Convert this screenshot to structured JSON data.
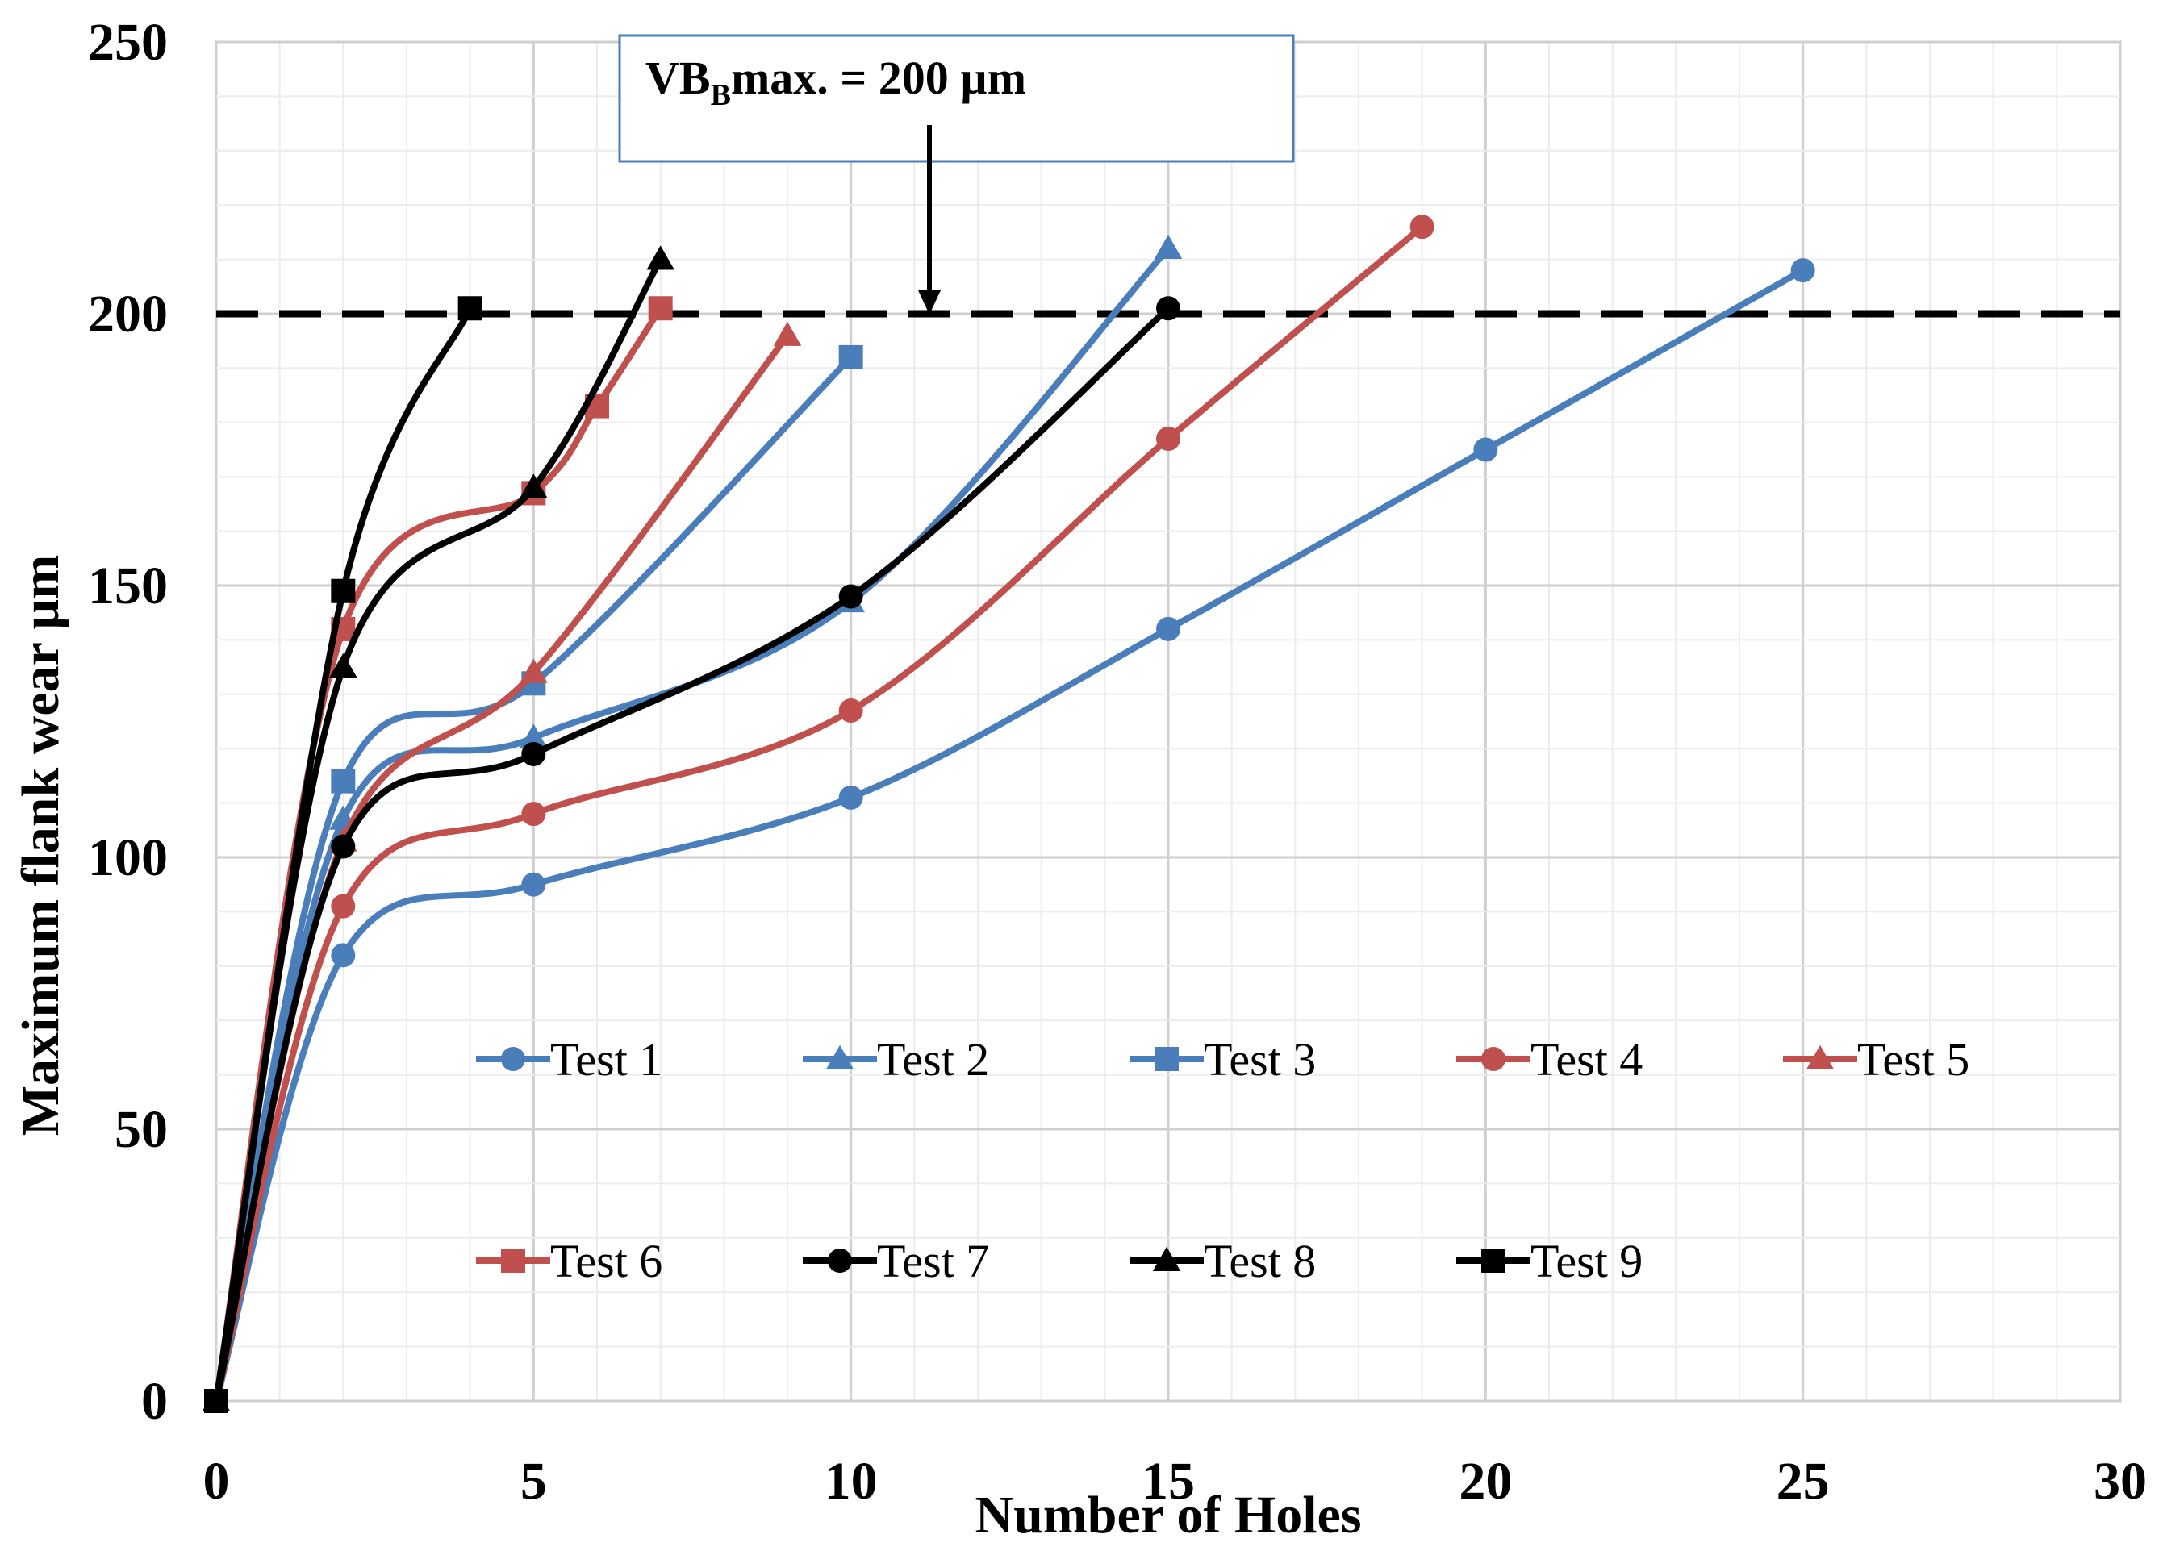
{
  "chart_data": {
    "type": "line",
    "title": "",
    "xlabel": "Number of Holes",
    "ylabel": "Maximum flank wear µm",
    "xlim": [
      0,
      30
    ],
    "ylim": [
      0,
      250
    ],
    "xticks": [
      0,
      5,
      10,
      15,
      20,
      25,
      30
    ],
    "yticks": [
      0,
      50,
      100,
      150,
      200,
      250
    ],
    "grid": true,
    "legend_position": "center",
    "threshold": {
      "value": 200,
      "style": "dashed",
      "color": "#000000"
    },
    "annotation": {
      "main": "VB",
      "subscript": "B",
      "rest": "max. = 200 µm"
    },
    "series": [
      {
        "name": "Test 1",
        "color": "#4a7ebb",
        "marker": "circle",
        "x": [
          0,
          2,
          5,
          10,
          15,
          20,
          25
        ],
        "y": [
          0,
          82,
          95,
          111,
          142,
          175,
          208
        ]
      },
      {
        "name": "Test 2",
        "color": "#4a7ebb",
        "marker": "triangle",
        "x": [
          0,
          2,
          5,
          10,
          15
        ],
        "y": [
          0,
          107,
          122,
          147,
          212
        ]
      },
      {
        "name": "Test 3",
        "color": "#4a7ebb",
        "marker": "square",
        "x": [
          0,
          2,
          5,
          10
        ],
        "y": [
          0,
          114,
          132,
          192
        ]
      },
      {
        "name": "Test 4",
        "color": "#c0504d",
        "marker": "circle",
        "x": [
          0,
          2,
          5,
          10,
          15,
          19
        ],
        "y": [
          0,
          91,
          108,
          127,
          177,
          216
        ]
      },
      {
        "name": "Test 5",
        "color": "#c0504d",
        "marker": "triangle",
        "x": [
          0,
          2,
          5,
          9
        ],
        "y": [
          0,
          103,
          134,
          196
        ]
      },
      {
        "name": "Test 6",
        "color": "#c0504d",
        "marker": "square",
        "x": [
          0,
          2,
          5,
          6,
          7
        ],
        "y": [
          0,
          142,
          167,
          183,
          201
        ]
      },
      {
        "name": "Test 7",
        "color": "#000000",
        "marker": "circle",
        "x": [
          0,
          2,
          5,
          10,
          15
        ],
        "y": [
          0,
          102,
          119,
          148,
          201
        ]
      },
      {
        "name": "Test 8",
        "color": "#000000",
        "marker": "triangle",
        "x": [
          0,
          2,
          5,
          7
        ],
        "y": [
          0,
          135,
          168,
          210
        ]
      },
      {
        "name": "Test 9",
        "color": "#000000",
        "marker": "square",
        "x": [
          0,
          2,
          4
        ],
        "y": [
          0,
          149,
          201
        ]
      }
    ]
  }
}
